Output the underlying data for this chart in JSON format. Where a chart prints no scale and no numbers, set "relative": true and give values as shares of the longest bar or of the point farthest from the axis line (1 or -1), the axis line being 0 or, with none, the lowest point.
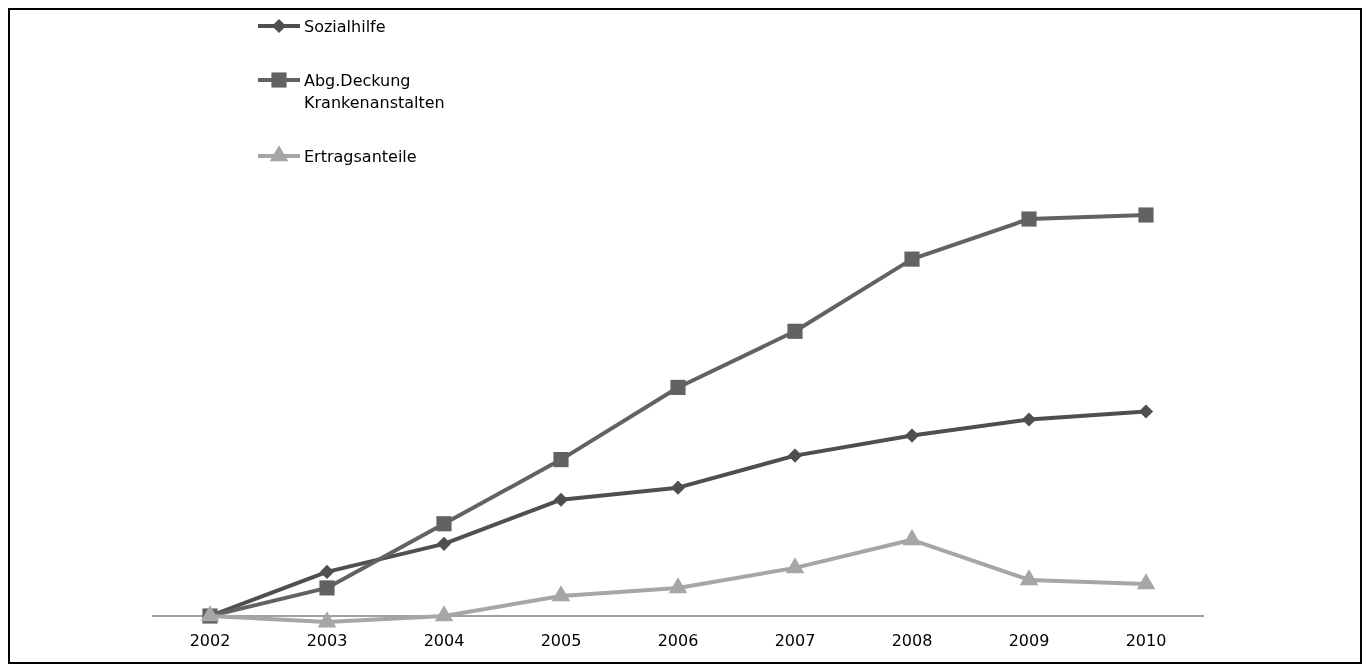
{
  "chart_data": {
    "type": "line",
    "relative": true,
    "legend": "top left",
    "categories": [
      "2002",
      "2003",
      "2004",
      "2005",
      "2006",
      "2007",
      "2008",
      "2009",
      "2010"
    ],
    "series": [
      {
        "name": "Sozialhilfe",
        "color": "#4f4f4f",
        "marker": "diamond",
        "values": [
          0,
          0.11,
          0.18,
          0.29,
          0.32,
          0.4,
          0.45,
          0.49,
          0.51
        ]
      },
      {
        "name": "Abg.Deckung Krankenanstalten",
        "color": "#626262",
        "marker": "square",
        "values": [
          0,
          0.07,
          0.23,
          0.39,
          0.57,
          0.71,
          0.89,
          0.99,
          1
        ]
      },
      {
        "name": "Ertragsanteile",
        "color": "#a6a6a6",
        "marker": "triangle",
        "values": [
          0,
          -0.015,
          0,
          0.05,
          0.07,
          0.12,
          0.19,
          0.09,
          0.08
        ]
      }
    ]
  }
}
